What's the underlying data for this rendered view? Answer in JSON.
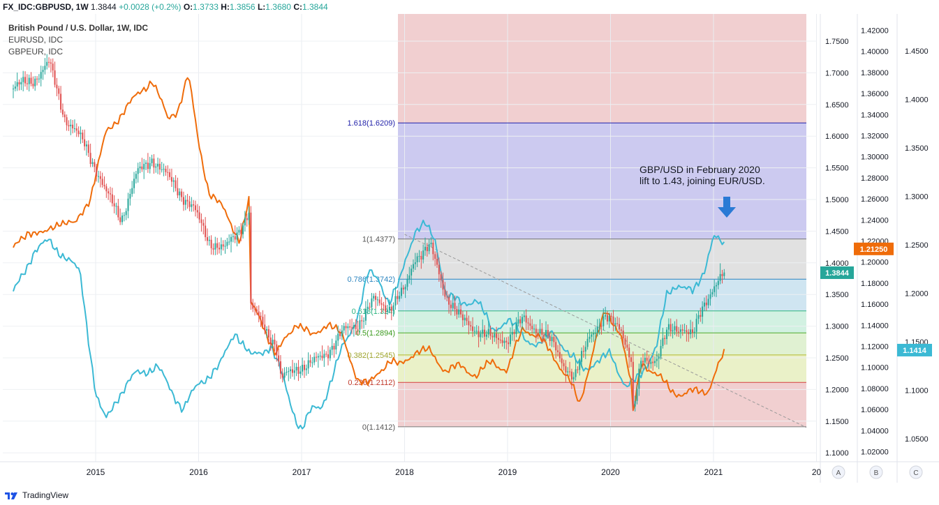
{
  "header": {
    "symbol": "FX_IDC:GBPUSD, 1W",
    "last": "1.3844",
    "change": "+0.0028 (+0.2%)",
    "o_label": "O:",
    "o": "1.3733",
    "h_label": "H:",
    "h": "1.3856",
    "l_label": "L:",
    "l": "1.3680",
    "c_label": "C:",
    "c": "1.3844"
  },
  "legend": {
    "main": "British Pound / U.S. Dollar, 1W, IDC",
    "s1": "EURUSD, IDC",
    "s2": "GBPEUR, IDC"
  },
  "footer": {
    "brand": "TradingView"
  },
  "colors": {
    "eurusd": "#3bb9d4",
    "gbpeur": "#ef6c0a",
    "up": "#26a69a",
    "down": "#e04f4f",
    "arrow": "#2a7ad5"
  },
  "chart_data": {
    "type": "candlestick",
    "x_ticks": [
      "2015",
      "2016",
      "2017",
      "2018",
      "2019",
      "2020",
      "2021",
      "20"
    ],
    "axis_a": {
      "ticks": [
        "1.7500",
        "1.7000",
        "1.6500",
        "1.6000",
        "1.5500",
        "1.5000",
        "1.4500",
        "1.4000",
        "1.3500",
        "1.3000",
        "1.2500",
        "1.2000",
        "1.1500",
        "1.1000"
      ],
      "last_label": "1.3844"
    },
    "axis_b": {
      "ticks": [
        "1.42000",
        "1.40000",
        "1.38000",
        "1.36000",
        "1.34000",
        "1.32000",
        "1.30000",
        "1.28000",
        "1.26000",
        "1.24000",
        "1.22000",
        "1.20000",
        "1.18000",
        "1.16000",
        "1.14000",
        "1.12000",
        "1.10000",
        "1.08000",
        "1.06000",
        "1.04000",
        "1.02000"
      ],
      "last_label": "1.21250"
    },
    "axis_c": {
      "ticks": [
        "1.4500",
        "1.4000",
        "1.3500",
        "1.3000",
        "1.2500",
        "1.2000",
        "1.1500",
        "1.1000",
        "1.0500"
      ],
      "last_label": "1.1414"
    },
    "axis_names": [
      "A",
      "B",
      "C"
    ],
    "fib_levels": [
      {
        "label": "1.618(1.6209)",
        "value": 1.6209
      },
      {
        "label": "1(1.4377)",
        "value": 1.4377
      },
      {
        "label": "0.786(1.3742)",
        "value": 1.3742
      },
      {
        "label": "0.618(1.324)",
        "value": 1.324
      },
      {
        "label": "0.5(1.2894)",
        "value": 1.2894
      },
      {
        "label": "0.382(1.2545)",
        "value": 1.2545
      },
      {
        "label": "0.236(1.2112)",
        "value": 1.2112
      },
      {
        "label": "0(1.1412)",
        "value": 1.1412
      }
    ],
    "annotation": [
      "GBP/USD in February 2020",
      "lift to 1.43, joining EUR/USD."
    ],
    "gbpusd": [
      [
        2014.2,
        1.675
      ],
      [
        2014.4,
        1.69
      ],
      [
        2014.55,
        1.715
      ],
      [
        2014.7,
        1.63
      ],
      [
        2014.9,
        1.585
      ],
      [
        2015.0,
        1.55
      ],
      [
        2015.1,
        1.51
      ],
      [
        2015.25,
        1.47
      ],
      [
        2015.4,
        1.54
      ],
      [
        2015.55,
        1.565
      ],
      [
        2015.75,
        1.525
      ],
      [
        2015.95,
        1.485
      ],
      [
        2016.1,
        1.435
      ],
      [
        2016.25,
        1.42
      ],
      [
        2016.4,
        1.455
      ],
      [
        2016.49,
        1.48
      ],
      [
        2016.5,
        1.33
      ],
      [
        2016.6,
        1.31
      ],
      [
        2016.75,
        1.27
      ],
      [
        2016.8,
        1.215
      ],
      [
        2016.95,
        1.235
      ],
      [
        2017.1,
        1.24
      ],
      [
        2017.25,
        1.26
      ],
      [
        2017.4,
        1.29
      ],
      [
        2017.55,
        1.305
      ],
      [
        2017.7,
        1.34
      ],
      [
        2017.85,
        1.33
      ],
      [
        2018.0,
        1.355
      ],
      [
        2018.1,
        1.41
      ],
      [
        2018.25,
        1.425
      ],
      [
        2018.4,
        1.35
      ],
      [
        2018.55,
        1.31
      ],
      [
        2018.7,
        1.295
      ],
      [
        2018.85,
        1.28
      ],
      [
        2019.0,
        1.28
      ],
      [
        2019.15,
        1.31
      ],
      [
        2019.3,
        1.295
      ],
      [
        2019.45,
        1.27
      ],
      [
        2019.55,
        1.24
      ],
      [
        2019.65,
        1.215
      ],
      [
        2019.8,
        1.29
      ],
      [
        2019.95,
        1.31
      ],
      [
        2020.1,
        1.3
      ],
      [
        2020.2,
        1.245
      ],
      [
        2020.22,
        1.16
      ],
      [
        2020.3,
        1.245
      ],
      [
        2020.45,
        1.25
      ],
      [
        2020.55,
        1.29
      ],
      [
        2020.7,
        1.3
      ],
      [
        2020.8,
        1.285
      ],
      [
        2020.9,
        1.33
      ],
      [
        2021.0,
        1.365
      ],
      [
        2021.12,
        1.3844
      ]
    ],
    "eurusd": [
      [
        2014.2,
        1.17
      ],
      [
        2014.4,
        1.21
      ],
      [
        2014.55,
        1.22
      ],
      [
        2014.7,
        1.205
      ],
      [
        2014.85,
        1.19
      ],
      [
        2015.0,
        1.075
      ],
      [
        2015.05,
        1.06
      ],
      [
        2015.1,
        1.05
      ],
      [
        2015.2,
        1.07
      ],
      [
        2015.4,
        1.095
      ],
      [
        2015.6,
        1.1
      ],
      [
        2015.85,
        1.06
      ],
      [
        2016.0,
        1.085
      ],
      [
        2016.2,
        1.1
      ],
      [
        2016.35,
        1.135
      ],
      [
        2016.5,
        1.11
      ],
      [
        2016.7,
        1.12
      ],
      [
        2016.8,
        1.095
      ],
      [
        2016.95,
        1.05
      ],
      [
        2017.0,
        1.04
      ],
      [
        2017.1,
        1.06
      ],
      [
        2017.2,
        1.065
      ],
      [
        2017.3,
        1.09
      ],
      [
        2017.4,
        1.12
      ],
      [
        2017.55,
        1.15
      ],
      [
        2017.65,
        1.19
      ],
      [
        2017.75,
        1.185
      ],
      [
        2017.85,
        1.16
      ],
      [
        2017.95,
        1.18
      ],
      [
        2018.0,
        1.2
      ],
      [
        2018.1,
        1.23
      ],
      [
        2018.2,
        1.235
      ],
      [
        2018.3,
        1.22
      ],
      [
        2018.4,
        1.17
      ],
      [
        2018.55,
        1.16
      ],
      [
        2018.7,
        1.165
      ],
      [
        2018.85,
        1.135
      ],
      [
        2019.0,
        1.145
      ],
      [
        2019.15,
        1.13
      ],
      [
        2019.3,
        1.12
      ],
      [
        2019.45,
        1.135
      ],
      [
        2019.6,
        1.11
      ],
      [
        2019.75,
        1.1
      ],
      [
        2019.9,
        1.105
      ],
      [
        2020.0,
        1.115
      ],
      [
        2020.15,
        1.08
      ],
      [
        2020.22,
        1.085
      ],
      [
        2020.3,
        1.095
      ],
      [
        2020.45,
        1.12
      ],
      [
        2020.55,
        1.17
      ],
      [
        2020.65,
        1.18
      ],
      [
        2020.8,
        1.17
      ],
      [
        2020.9,
        1.19
      ],
      [
        2021.0,
        1.225
      ],
      [
        2021.12,
        1.2125
      ]
    ],
    "gbpeur": [
      [
        2014.2,
        1.245
      ],
      [
        2014.35,
        1.265
      ],
      [
        2014.5,
        1.26
      ],
      [
        2014.65,
        1.275
      ],
      [
        2014.8,
        1.27
      ],
      [
        2014.95,
        1.3
      ],
      [
        2015.1,
        1.365
      ],
      [
        2015.25,
        1.385
      ],
      [
        2015.45,
        1.41
      ],
      [
        2015.55,
        1.42
      ],
      [
        2015.7,
        1.38
      ],
      [
        2015.8,
        1.39
      ],
      [
        2015.9,
        1.425
      ],
      [
        2016.0,
        1.355
      ],
      [
        2016.1,
        1.305
      ],
      [
        2016.25,
        1.285
      ],
      [
        2016.4,
        1.255
      ],
      [
        2016.49,
        1.295
      ],
      [
        2016.5,
        1.19
      ],
      [
        2016.6,
        1.175
      ],
      [
        2016.75,
        1.135
      ],
      [
        2016.85,
        1.155
      ],
      [
        2016.95,
        1.17
      ],
      [
        2017.1,
        1.155
      ],
      [
        2017.25,
        1.17
      ],
      [
        2017.4,
        1.155
      ],
      [
        2017.55,
        1.11
      ],
      [
        2017.65,
        1.105
      ],
      [
        2017.75,
        1.12
      ],
      [
        2017.85,
        1.13
      ],
      [
        2017.95,
        1.125
      ],
      [
        2018.1,
        1.14
      ],
      [
        2018.25,
        1.14
      ],
      [
        2018.4,
        1.12
      ],
      [
        2018.55,
        1.125
      ],
      [
        2018.7,
        1.115
      ],
      [
        2018.85,
        1.13
      ],
      [
        2019.0,
        1.12
      ],
      [
        2019.15,
        1.165
      ],
      [
        2019.3,
        1.155
      ],
      [
        2019.45,
        1.135
      ],
      [
        2019.6,
        1.11
      ],
      [
        2019.7,
        1.085
      ],
      [
        2019.85,
        1.15
      ],
      [
        2019.95,
        1.18
      ],
      [
        2020.1,
        1.16
      ],
      [
        2020.2,
        1.105
      ],
      [
        2020.22,
        1.075
      ],
      [
        2020.3,
        1.13
      ],
      [
        2020.45,
        1.115
      ],
      [
        2020.6,
        1.1
      ],
      [
        2020.7,
        1.095
      ],
      [
        2020.85,
        1.1
      ],
      [
        2020.95,
        1.1
      ],
      [
        2021.05,
        1.125
      ],
      [
        2021.12,
        1.1414
      ]
    ]
  }
}
